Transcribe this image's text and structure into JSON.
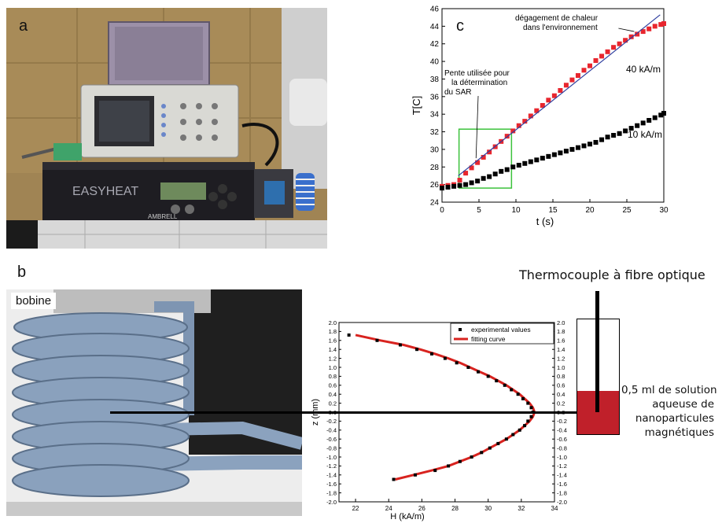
{
  "panel_labels": {
    "a": "a",
    "b": "b",
    "c": "c"
  },
  "photo_a": {
    "device_brand": "EASYHEAT",
    "device_maker": "AMBRELL"
  },
  "photo_b": {
    "coil_label": "bobine"
  },
  "annotations": {
    "thermocouple": "Thermocouple à fibre optique",
    "solution_line1": "0,5 ml de solution",
    "solution_line2": "aqueuse de",
    "solution_line3": "nanoparticules",
    "solution_line4": "magnétiques"
  },
  "colors": {
    "red_series": "#e8262e",
    "black_series": "#000000",
    "fit_line": "#2f3f9f",
    "green_box": "#3cc23c",
    "solution_fill": "#c0202a",
    "fitting_curve": "#d8231f"
  },
  "chart_data": [
    {
      "id": "c",
      "type": "scatter",
      "xlabel": "t (s)",
      "ylabel": "T[C]",
      "xlim": [
        0,
        30
      ],
      "ylim": [
        24,
        46
      ],
      "xticks": [
        0,
        5,
        10,
        15,
        20,
        25,
        30
      ],
      "yticks": [
        24,
        26,
        28,
        30,
        32,
        34,
        36,
        38,
        40,
        42,
        44,
        46
      ],
      "grid": false,
      "series": [
        {
          "name": "40 kA/m",
          "marker": "square",
          "color": "#e8262e",
          "points": [
            [
              0,
              25.8
            ],
            [
              0.8,
              25.9
            ],
            [
              1.6,
              26.0
            ],
            [
              2.4,
              26.5
            ],
            [
              3.2,
              27.3
            ],
            [
              4.0,
              27.9
            ],
            [
              4.8,
              28.5
            ],
            [
              5.6,
              29.1
            ],
            [
              6.4,
              29.7
            ],
            [
              7.2,
              30.3
            ],
            [
              8.0,
              30.9
            ],
            [
              8.8,
              31.5
            ],
            [
              9.6,
              32.1
            ],
            [
              10.4,
              32.7
            ],
            [
              11.2,
              33.2
            ],
            [
              12.0,
              33.8
            ],
            [
              12.8,
              34.4
            ],
            [
              13.6,
              35.0
            ],
            [
              14.4,
              35.6
            ],
            [
              15.2,
              36.1
            ],
            [
              16.0,
              36.7
            ],
            [
              16.8,
              37.3
            ],
            [
              17.6,
              37.9
            ],
            [
              18.4,
              38.4
            ],
            [
              19.2,
              39.0
            ],
            [
              20.0,
              39.5
            ],
            [
              20.8,
              40.1
            ],
            [
              21.6,
              40.6
            ],
            [
              22.4,
              41.1
            ],
            [
              23.2,
              41.6
            ],
            [
              24.0,
              42.0
            ],
            [
              24.8,
              42.4
            ],
            [
              25.6,
              42.8
            ],
            [
              26.4,
              43.1
            ],
            [
              27.2,
              43.4
            ],
            [
              28.0,
              43.7
            ],
            [
              28.8,
              44.0
            ],
            [
              29.6,
              44.2
            ],
            [
              30.0,
              44.3
            ]
          ]
        },
        {
          "name": "10 kA/m",
          "marker": "square",
          "color": "#000000",
          "points": [
            [
              0,
              25.6
            ],
            [
              0.8,
              25.7
            ],
            [
              1.6,
              25.8
            ],
            [
              2.4,
              25.9
            ],
            [
              3.2,
              26.0
            ],
            [
              4.0,
              26.2
            ],
            [
              4.8,
              26.4
            ],
            [
              5.6,
              26.7
            ],
            [
              6.4,
              26.9
            ],
            [
              7.2,
              27.2
            ],
            [
              8.0,
              27.5
            ],
            [
              8.8,
              27.7
            ],
            [
              9.6,
              28.0
            ],
            [
              10.4,
              28.2
            ],
            [
              11.2,
              28.4
            ],
            [
              12.0,
              28.6
            ],
            [
              12.8,
              28.8
            ],
            [
              13.6,
              29.0
            ],
            [
              14.4,
              29.2
            ],
            [
              15.2,
              29.4
            ],
            [
              16.0,
              29.6
            ],
            [
              16.8,
              29.8
            ],
            [
              17.6,
              30.0
            ],
            [
              18.4,
              30.2
            ],
            [
              19.2,
              30.4
            ],
            [
              20.0,
              30.6
            ],
            [
              20.8,
              30.8
            ],
            [
              21.6,
              31.1
            ],
            [
              22.4,
              31.4
            ],
            [
              23.2,
              31.6
            ],
            [
              24.0,
              31.8
            ],
            [
              24.8,
              32.1
            ],
            [
              25.6,
              32.4
            ],
            [
              26.4,
              32.7
            ],
            [
              27.2,
              33.0
            ],
            [
              28.0,
              33.3
            ],
            [
              28.8,
              33.6
            ],
            [
              29.6,
              33.9
            ],
            [
              30.0,
              34.1
            ]
          ]
        }
      ],
      "fit_line": {
        "from": [
          2.2,
          27.0
        ],
        "to": [
          29.5,
          45.3
        ],
        "color": "#2f3f9f"
      },
      "highlight_box": {
        "x": [
          2.3,
          9.4
        ],
        "y": [
          25.6,
          32.3
        ],
        "color": "#3cc23c"
      },
      "annotations": [
        {
          "text_lines": [
            "dégagement de chaleur",
            "dans l'environnement"
          ],
          "anchor": [
            26.0,
            43.4
          ]
        },
        {
          "text_lines": [
            "Pente utilisée pour",
            "la détermination",
            "du SAR"
          ],
          "anchor": [
            4.6,
            29.0
          ]
        },
        {
          "text": "40 kA/m"
        },
        {
          "text": "10 kA/m"
        }
      ]
    },
    {
      "id": "b-profile",
      "type": "scatter",
      "xlabel": "H (kA/m)",
      "ylabel": "z (mm)",
      "xlim": [
        21,
        34
      ],
      "ylim": [
        -2.0,
        2.0
      ],
      "xticks": [
        22,
        24,
        26,
        28,
        30,
        32,
        34
      ],
      "yticks": [
        -2.0,
        -1.8,
        -1.6,
        -1.4,
        -1.2,
        -1.0,
        -0.8,
        -0.6,
        -0.4,
        -0.2,
        0.0,
        0.2,
        0.4,
        0.6,
        0.8,
        1.0,
        1.2,
        1.4,
        1.6,
        1.8,
        2.0
      ],
      "grid": false,
      "legend_position": "top-right",
      "series": [
        {
          "name": "experimental values",
          "marker": "square",
          "color": "#000000",
          "points": [
            [
              21.6,
              1.72
            ],
            [
              23.3,
              1.6
            ],
            [
              24.7,
              1.5
            ],
            [
              25.7,
              1.4
            ],
            [
              26.6,
              1.3
            ],
            [
              27.4,
              1.2
            ],
            [
              28.1,
              1.1
            ],
            [
              28.8,
              1.0
            ],
            [
              29.4,
              0.9
            ],
            [
              30.0,
              0.8
            ],
            [
              30.5,
              0.7
            ],
            [
              31.0,
              0.6
            ],
            [
              31.4,
              0.5
            ],
            [
              31.8,
              0.4
            ],
            [
              32.1,
              0.3
            ],
            [
              32.4,
              0.2
            ],
            [
              32.6,
              0.1
            ],
            [
              32.7,
              0.0
            ],
            [
              32.6,
              -0.1
            ],
            [
              32.4,
              -0.2
            ],
            [
              32.2,
              -0.3
            ],
            [
              31.9,
              -0.4
            ],
            [
              31.5,
              -0.5
            ],
            [
              31.1,
              -0.6
            ],
            [
              30.6,
              -0.7
            ],
            [
              30.1,
              -0.8
            ],
            [
              29.6,
              -0.9
            ],
            [
              29.0,
              -1.0
            ],
            [
              28.3,
              -1.1
            ],
            [
              27.6,
              -1.2
            ],
            [
              26.8,
              -1.3
            ],
            [
              25.6,
              -1.4
            ],
            [
              24.3,
              -1.5
            ]
          ]
        },
        {
          "name": "fitting curve",
          "line": true,
          "color": "#d8231f",
          "points": [
            [
              22.0,
              1.72
            ],
            [
              23.5,
              1.6
            ],
            [
              24.9,
              1.5
            ],
            [
              25.9,
              1.4
            ],
            [
              26.8,
              1.3
            ],
            [
              27.6,
              1.2
            ],
            [
              28.3,
              1.1
            ],
            [
              28.9,
              1.0
            ],
            [
              29.5,
              0.9
            ],
            [
              30.1,
              0.8
            ],
            [
              30.6,
              0.7
            ],
            [
              31.1,
              0.6
            ],
            [
              31.5,
              0.5
            ],
            [
              31.9,
              0.4
            ],
            [
              32.2,
              0.3
            ],
            [
              32.5,
              0.2
            ],
            [
              32.7,
              0.1
            ],
            [
              32.8,
              0.0
            ],
            [
              32.7,
              -0.1
            ],
            [
              32.5,
              -0.2
            ],
            [
              32.2,
              -0.3
            ],
            [
              31.9,
              -0.4
            ],
            [
              31.5,
              -0.5
            ],
            [
              31.1,
              -0.6
            ],
            [
              30.6,
              -0.7
            ],
            [
              30.1,
              -0.8
            ],
            [
              29.6,
              -0.9
            ],
            [
              29.0,
              -1.0
            ],
            [
              28.3,
              -1.1
            ],
            [
              27.6,
              -1.2
            ],
            [
              26.6,
              -1.3
            ],
            [
              25.5,
              -1.4
            ],
            [
              24.4,
              -1.5
            ]
          ]
        }
      ]
    }
  ]
}
